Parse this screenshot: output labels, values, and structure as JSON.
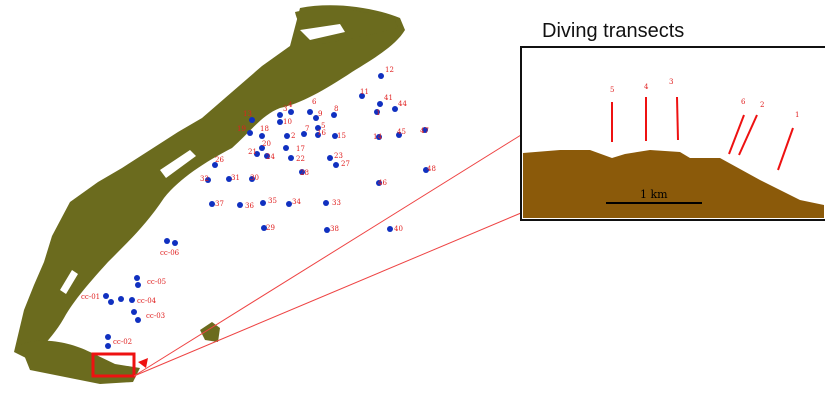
{
  "inset": {
    "title": "Diving transects",
    "scale_label": "1 km",
    "transects": [
      "5",
      "4",
      "3",
      "6",
      "2",
      "1"
    ]
  },
  "colors": {
    "land": "#6b6b1e",
    "station": "#1030c0",
    "label": "#e02020",
    "seabed": "#8b5a0a",
    "highlight": "#ee1111"
  },
  "stations": [
    "12",
    "11",
    "41",
    "44",
    "13",
    "3",
    "4",
    "6",
    "10",
    "9",
    "8",
    "1",
    "5",
    "19",
    "18",
    "20",
    "2",
    "7",
    "15",
    "14",
    "45",
    "47",
    "21",
    "24",
    "22",
    "17",
    "16",
    "26",
    "28",
    "27",
    "23",
    "32",
    "31",
    "30",
    "46",
    "48",
    "37",
    "36",
    "35",
    "34",
    "33",
    "29",
    "38",
    "40"
  ],
  "reference_sites": [
    "cc-06",
    "cc-05",
    "cc-01",
    "cc-04",
    "cc-03",
    "cc-02"
  ]
}
